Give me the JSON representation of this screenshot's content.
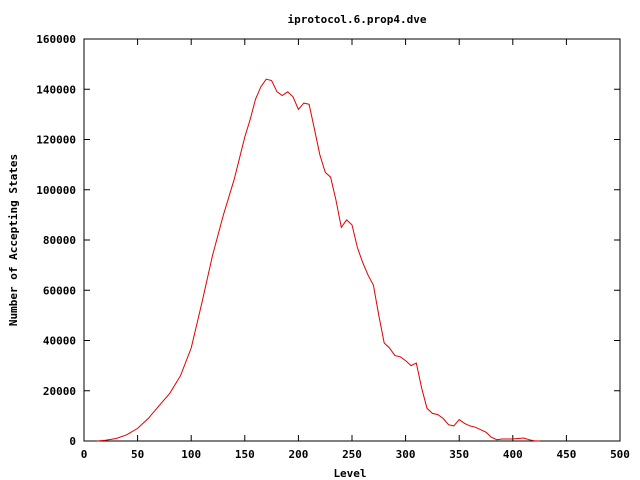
{
  "chart_data": {
    "type": "line",
    "title": "iprotocol.6.prop4.dve",
    "xlabel": "Level",
    "ylabel": "Number of Accepting States",
    "xlim": [
      0,
      500
    ],
    "ylim": [
      0,
      160000
    ],
    "x_ticks": [
      "0",
      "50",
      "100",
      "150",
      "200",
      "250",
      "300",
      "350",
      "400",
      "450",
      "500"
    ],
    "y_ticks": [
      "0",
      "20000",
      "40000",
      "60000",
      "80000",
      "100000",
      "120000",
      "140000",
      "160000"
    ],
    "grid": false,
    "legend": "none",
    "series_color": "#e00000",
    "series": [
      {
        "x": [
          12,
          20,
          30,
          40,
          50,
          60,
          70,
          80,
          90,
          100,
          110,
          120,
          130,
          140,
          150,
          155,
          160,
          165,
          170,
          175,
          180,
          185,
          190,
          195,
          200,
          205,
          210,
          215,
          220,
          225,
          230,
          235,
          240,
          245,
          250,
          255,
          260,
          265,
          270,
          275,
          280,
          285,
          290,
          295,
          300,
          305,
          310,
          315,
          320,
          325,
          330,
          335,
          340,
          345,
          350,
          355,
          360,
          365,
          370,
          375,
          380,
          385,
          390,
          400,
          410,
          415,
          420,
          425
        ],
        "y": [
          0,
          300,
          1000,
          2500,
          5000,
          9000,
          14000,
          19000,
          26000,
          37000,
          55000,
          74000,
          90000,
          104000,
          121000,
          128000,
          136000,
          141000,
          144000,
          143500,
          139000,
          137500,
          139000,
          137000,
          132000,
          134500,
          134000,
          124000,
          114000,
          107000,
          105000,
          96000,
          85000,
          88000,
          86000,
          77000,
          71000,
          66000,
          62000,
          50000,
          39000,
          37000,
          34000,
          33500,
          32000,
          30000,
          31000,
          21000,
          13000,
          11000,
          10500,
          9000,
          6500,
          6000,
          8500,
          7000,
          6000,
          5500,
          4500,
          3500,
          1500,
          500,
          800,
          800,
          1200,
          500,
          100,
          0
        ]
      }
    ]
  }
}
